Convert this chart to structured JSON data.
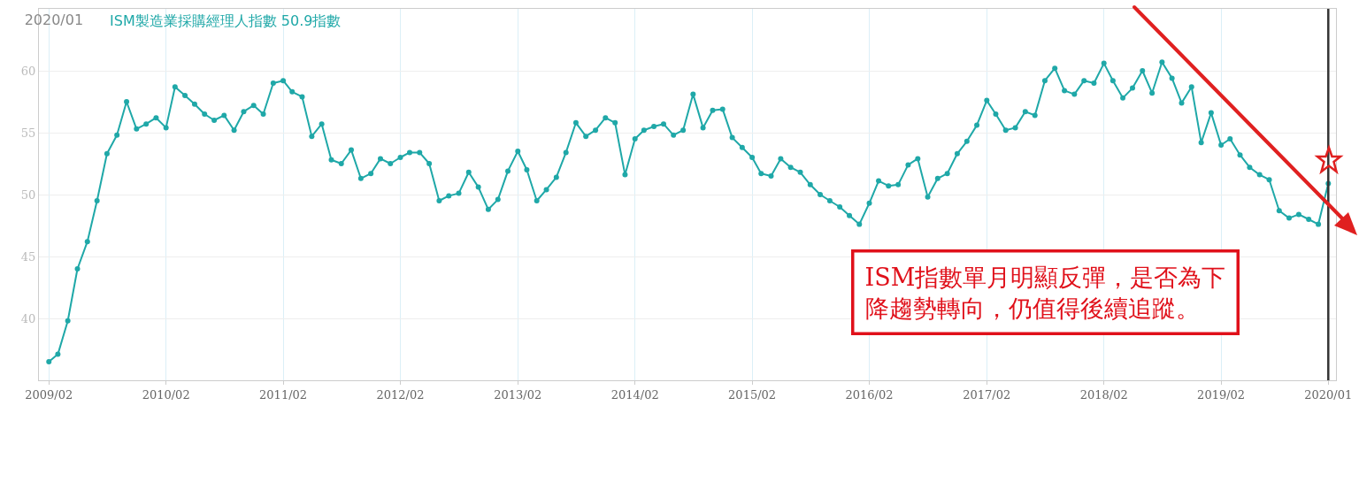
{
  "chart_data": {
    "type": "line",
    "title": "2020/01",
    "x": [
      "2009-02",
      "2009-03",
      "2009-04",
      "2009-05",
      "2009-06",
      "2009-07",
      "2009-08",
      "2009-09",
      "2009-10",
      "2009-11",
      "2009-12",
      "2010-01",
      "2010-02",
      "2010-03",
      "2010-04",
      "2010-05",
      "2010-06",
      "2010-07",
      "2010-08",
      "2010-09",
      "2010-10",
      "2010-11",
      "2010-12",
      "2011-01",
      "2011-02",
      "2011-03",
      "2011-04",
      "2011-05",
      "2011-06",
      "2011-07",
      "2011-08",
      "2011-09",
      "2011-10",
      "2011-11",
      "2011-12",
      "2012-01",
      "2012-02",
      "2012-03",
      "2012-04",
      "2012-05",
      "2012-06",
      "2012-07",
      "2012-08",
      "2012-09",
      "2012-10",
      "2012-11",
      "2012-12",
      "2013-01",
      "2013-02",
      "2013-03",
      "2013-04",
      "2013-05",
      "2013-06",
      "2013-07",
      "2013-08",
      "2013-09",
      "2013-10",
      "2013-11",
      "2013-12",
      "2014-01",
      "2014-02",
      "2014-03",
      "2014-04",
      "2014-05",
      "2014-06",
      "2014-07",
      "2014-08",
      "2014-09",
      "2014-10",
      "2014-11",
      "2014-12",
      "2015-01",
      "2015-02",
      "2015-03",
      "2015-04",
      "2015-05",
      "2015-06",
      "2015-07",
      "2015-08",
      "2015-09",
      "2015-10",
      "2015-11",
      "2015-12",
      "2016-01",
      "2016-02",
      "2016-03",
      "2016-04",
      "2016-05",
      "2016-06",
      "2016-07",
      "2016-08",
      "2016-09",
      "2016-10",
      "2016-11",
      "2016-12",
      "2017-01",
      "2017-02",
      "2017-03",
      "2017-04",
      "2017-05",
      "2017-06",
      "2017-07",
      "2017-08",
      "2017-09",
      "2017-10",
      "2017-11",
      "2017-12",
      "2018-01",
      "2018-02",
      "2018-03",
      "2018-04",
      "2018-05",
      "2018-06",
      "2018-07",
      "2018-08",
      "2018-09",
      "2018-10",
      "2018-11",
      "2018-12",
      "2019-01",
      "2019-02",
      "2019-03",
      "2019-04",
      "2019-05",
      "2019-06",
      "2019-07",
      "2019-08",
      "2019-09",
      "2019-10",
      "2019-11",
      "2019-12",
      "2020-01"
    ],
    "series": [
      {
        "name": "ISM製造業採購經理人指數 50.9指數",
        "color": "#1fa8a8",
        "values": [
          36.5,
          37.1,
          39.8,
          44.0,
          46.2,
          49.5,
          53.3,
          54.8,
          57.5,
          55.3,
          55.7,
          56.2,
          55.4,
          58.7,
          58.0,
          57.3,
          56.5,
          56.0,
          56.4,
          55.2,
          56.7,
          57.2,
          56.5,
          59.0,
          59.2,
          58.3,
          57.9,
          54.7,
          55.7,
          52.8,
          52.5,
          53.6,
          51.3,
          51.7,
          52.9,
          52.5,
          53.0,
          53.4,
          53.4,
          52.5,
          49.5,
          49.9,
          50.1,
          51.8,
          50.6,
          48.8,
          49.6,
          51.9,
          53.5,
          52.0,
          49.5,
          50.4,
          51.4,
          53.4,
          55.8,
          54.7,
          55.2,
          56.2,
          55.8,
          51.6,
          54.5,
          55.2,
          55.5,
          55.7,
          54.8,
          55.2,
          58.1,
          55.4,
          56.8,
          56.9,
          54.6,
          53.8,
          53.0,
          51.7,
          51.5,
          52.9,
          52.2,
          51.8,
          50.8,
          50.0,
          49.5,
          49.0,
          48.3,
          47.6,
          49.3,
          51.1,
          50.7,
          50.8,
          52.4,
          52.9,
          49.8,
          51.3,
          51.7,
          53.3,
          54.3,
          55.6,
          57.6,
          56.5,
          55.2,
          55.4,
          56.7,
          56.4,
          59.2,
          60.2,
          58.4,
          58.1,
          59.2,
          59.0,
          60.6,
          59.2,
          57.8,
          58.6,
          60.0,
          58.2,
          60.7,
          59.4,
          57.4,
          58.7,
          54.2,
          56.6,
          54.0,
          54.5,
          53.2,
          52.2,
          51.6,
          51.2,
          48.7,
          48.1,
          48.4,
          48.0,
          47.6,
          50.9
        ]
      }
    ],
    "xlim": [
      "2009-01-01",
      "2020-01-25"
    ],
    "xticks": [
      {
        "value": "2009-02",
        "label": "2009/02"
      },
      {
        "value": "2010-02",
        "label": "2010/02"
      },
      {
        "value": "2011-02",
        "label": "2011/02"
      },
      {
        "value": "2012-02",
        "label": "2012/02"
      },
      {
        "value": "2013-02",
        "label": "2013/02"
      },
      {
        "value": "2014-02",
        "label": "2014/02"
      },
      {
        "value": "2015-02",
        "label": "2015/02"
      },
      {
        "value": "2016-02",
        "label": "2016/02"
      },
      {
        "value": "2017-02",
        "label": "2017/02"
      },
      {
        "value": "2018-02",
        "label": "2018/02"
      },
      {
        "value": "2019-02",
        "label": "2019/02"
      },
      {
        "value": "2020-01",
        "label": "2020/01"
      }
    ],
    "ylim": [
      35,
      65
    ],
    "yticks": [
      40,
      45,
      50,
      55,
      60
    ],
    "grid": true,
    "legend": false,
    "marker": "circle",
    "line_style": "solid",
    "ref_lines": [
      {
        "axis": "x",
        "value": "2020-01",
        "color": "#333333"
      }
    ],
    "annotations": [
      "ISM指數單月明顯反彈，是否為下降趨勢轉向，仍值得後續追蹤。"
    ]
  }
}
